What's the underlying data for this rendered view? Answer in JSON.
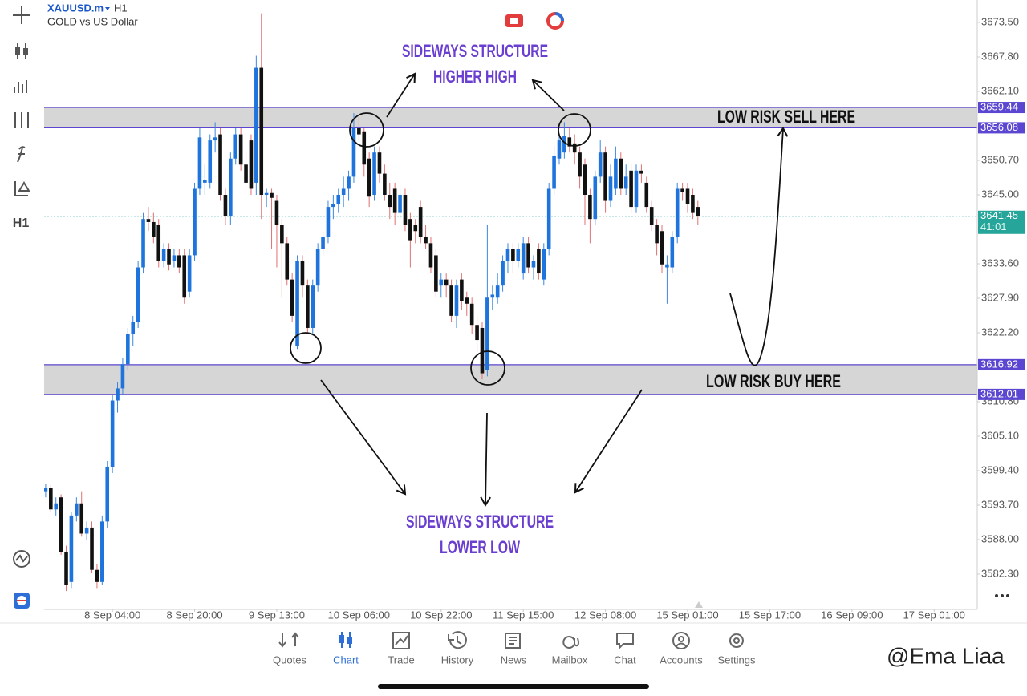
{
  "header": {
    "symbol": "XAUUSD.m",
    "timeframe": "H1",
    "description": "GOLD vs US Dollar"
  },
  "toolbar": {
    "timeframe": "H1"
  },
  "chart_data": {
    "type": "candlestick",
    "up_color": "#1e74dc",
    "down_color": "#111111",
    "up_wick_color": "#3a86e0",
    "down_wick_color": "#e07070",
    "xlim": [
      -0.3,
      181.4
    ],
    "ylim": [
      3576.47,
      3677.21
    ],
    "xticks": [
      {
        "value": 13,
        "label": "8 Sep 04:00"
      },
      {
        "value": 29,
        "label": "8 Sep 20:00"
      },
      {
        "value": 45,
        "label": "9 Sep 13:00"
      },
      {
        "value": 61,
        "label": "10 Sep 06:00"
      },
      {
        "value": 77,
        "label": "10 Sep 22:00"
      },
      {
        "value": 93,
        "label": "11 Sep 15:00"
      },
      {
        "value": 109,
        "label": "12 Sep 08:00"
      },
      {
        "value": 125,
        "label": "15 Sep 01:00"
      },
      {
        "value": 141,
        "label": "15 Sep 17:00"
      },
      {
        "value": 157,
        "label": "16 Sep 09:00"
      },
      {
        "value": 173,
        "label": "17 Sep 01:00"
      }
    ],
    "yticks": [
      {
        "value": 3673.5,
        "label": "3673.50"
      },
      {
        "value": 3667.8,
        "label": "3667.80"
      },
      {
        "value": 3662.1,
        "label": "3662.10"
      },
      {
        "value": 3650.7,
        "label": "3650.70"
      },
      {
        "value": 3645.0,
        "label": "3645.00"
      },
      {
        "value": 3633.6,
        "label": "3633.60"
      },
      {
        "value": 3627.9,
        "label": "3627.90"
      },
      {
        "value": 3622.2,
        "label": "3622.20"
      },
      {
        "value": 3610.8,
        "label": "3610.80"
      },
      {
        "value": 3605.1,
        "label": "3605.10"
      },
      {
        "value": 3599.4,
        "label": "3599.40"
      },
      {
        "value": 3593.7,
        "label": "3593.70"
      },
      {
        "value": 3588.0,
        "label": "3588.00"
      },
      {
        "value": 3582.3,
        "label": "3582.30"
      }
    ],
    "levels": [
      3659.44,
      3656.08,
      3616.92,
      3612.01
    ],
    "current_price": 3641.45,
    "timer": "41:01",
    "annotations": [
      "SIDEWAYS STRUCTURE",
      "HIGHER HIGH",
      "LOW RISK SELL HERE",
      "LOW RISK BUY HERE",
      "SIDEWAYS STRUCTURE",
      "LOWER LOW"
    ],
    "candles": [
      [
        3596,
        3597.2,
        3595,
        3596.5
      ],
      [
        3596.5,
        3597,
        3592.5,
        3593
      ],
      [
        3593,
        3595,
        3592,
        3594
      ],
      [
        3595,
        3595.5,
        3585.5,
        3586
      ],
      [
        3586,
        3587,
        3579.5,
        3580.5
      ],
      [
        3581,
        3592.5,
        3580,
        3592
      ],
      [
        3592,
        3595,
        3591,
        3594
      ],
      [
        3594,
        3596,
        3588.5,
        3589
      ],
      [
        3589,
        3591,
        3588,
        3590
      ],
      [
        3590,
        3591,
        3582.5,
        3583
      ],
      [
        3583,
        3584,
        3580,
        3581
      ],
      [
        3581,
        3592,
        3580.5,
        3591
      ],
      [
        3591,
        3601,
        3590,
        3600
      ],
      [
        3600,
        3612,
        3599,
        3611
      ],
      [
        3611,
        3614,
        3609,
        3613
      ],
      [
        3613,
        3618,
        3612,
        3617
      ],
      [
        3617,
        3623,
        3616,
        3622
      ],
      [
        3622,
        3625,
        3620,
        3624
      ],
      [
        3624,
        3634,
        3623,
        3633
      ],
      [
        3633,
        3642,
        3632,
        3641
      ],
      [
        3641,
        3643,
        3639,
        3640.5
      ],
      [
        3640.5,
        3642,
        3637,
        3638
      ],
      [
        3640,
        3641,
        3633,
        3634
      ],
      [
        3634,
        3637,
        3633,
        3636
      ],
      [
        3636,
        3637,
        3632.5,
        3633.5
      ],
      [
        3634,
        3636,
        3633,
        3635
      ],
      [
        3635,
        3636,
        3632,
        3633
      ],
      [
        3635,
        3636,
        3627,
        3628
      ],
      [
        3629,
        3636,
        3628,
        3635
      ],
      [
        3635,
        3647,
        3634,
        3646
      ],
      [
        3646,
        3656,
        3645,
        3654.5
      ],
      [
        3647,
        3650,
        3645,
        3647.5
      ],
      [
        3647,
        3655,
        3646,
        3654
      ],
      [
        3654,
        3657,
        3652,
        3654.5
      ],
      [
        3655,
        3656,
        3644,
        3645
      ],
      [
        3645,
        3646,
        3640,
        3641.5
      ],
      [
        3641.5,
        3652,
        3640,
        3651
      ],
      [
        3651,
        3656,
        3650,
        3655
      ],
      [
        3655,
        3656,
        3649,
        3650
      ],
      [
        3650,
        3652,
        3646,
        3647
      ],
      [
        3654,
        3655,
        3645,
        3646
      ],
      [
        3647,
        3668,
        3645,
        3666
      ],
      [
        3666,
        3675,
        3641,
        3645
      ],
      [
        3645,
        3646,
        3643,
        3645.3
      ],
      [
        3645.3,
        3646,
        3636,
        3644.5
      ],
      [
        3644,
        3645,
        3633,
        3640
      ],
      [
        3640,
        3641,
        3628,
        3637
      ],
      [
        3637,
        3638,
        3630,
        3631
      ],
      [
        3631,
        3632,
        3624,
        3625
      ],
      [
        3620,
        3635,
        3619.5,
        3634
      ],
      [
        3634,
        3635,
        3628,
        3630
      ],
      [
        3630,
        3631,
        3622,
        3623
      ],
      [
        3623,
        3631,
        3622,
        3630
      ],
      [
        3630,
        3637,
        3629,
        3636
      ],
      [
        3636,
        3639,
        3635,
        3638
      ],
      [
        3638,
        3644,
        3637,
        3643
      ],
      [
        3643,
        3645,
        3641,
        3643.5
      ],
      [
        3643.5,
        3646,
        3642,
        3645
      ],
      [
        3645,
        3648,
        3643,
        3646
      ],
      [
        3646,
        3649,
        3644,
        3648
      ],
      [
        3648,
        3658.5,
        3647,
        3656
      ],
      [
        3656,
        3658,
        3654,
        3655
      ],
      [
        3655.5,
        3656,
        3648,
        3650
      ],
      [
        3651,
        3652,
        3643,
        3644.7
      ],
      [
        3645,
        3653,
        3644,
        3652
      ],
      [
        3652,
        3653,
        3647,
        3648.5
      ],
      [
        3648.5,
        3650,
        3644,
        3645
      ],
      [
        3645,
        3647,
        3641,
        3643
      ],
      [
        3646,
        3647,
        3640,
        3642
      ],
      [
        3642,
        3646,
        3641,
        3645
      ],
      [
        3645,
        3646,
        3639,
        3640
      ],
      [
        3641,
        3642,
        3633,
        3637.5
      ],
      [
        3640,
        3641,
        3637,
        3639
      ],
      [
        3643,
        3644,
        3637,
        3638
      ],
      [
        3638,
        3640,
        3636,
        3637
      ],
      [
        3637,
        3638,
        3632,
        3633
      ],
      [
        3635,
        3636,
        3628,
        3629
      ],
      [
        3630,
        3632,
        3628,
        3631
      ],
      [
        3631,
        3632,
        3628,
        3630
      ],
      [
        3630,
        3631,
        3624,
        3625
      ],
      [
        3625,
        3631,
        3623,
        3630
      ],
      [
        3631,
        3632,
        3626,
        3627.5
      ],
      [
        3628,
        3629,
        3625,
        3627
      ],
      [
        3627,
        3628,
        3622,
        3623.5
      ],
      [
        3623.5,
        3625,
        3619,
        3621
      ],
      [
        3623,
        3624,
        3614.5,
        3615.5
      ],
      [
        3616,
        3640,
        3615,
        3628
      ],
      [
        3628,
        3630,
        3626,
        3628.5
      ],
      [
        3628,
        3632,
        3627,
        3630
      ],
      [
        3630,
        3635,
        3629,
        3634
      ],
      [
        3634,
        3637,
        3632,
        3636
      ],
      [
        3636,
        3637,
        3632,
        3634
      ],
      [
        3634,
        3637,
        3633,
        3636
      ],
      [
        3632,
        3638,
        3631,
        3637
      ],
      [
        3637,
        3638,
        3632,
        3633
      ],
      [
        3633,
        3635,
        3631,
        3634
      ],
      [
        3636,
        3637,
        3631,
        3632
      ],
      [
        3631,
        3637,
        3630,
        3636
      ],
      [
        3636,
        3647,
        3635,
        3646
      ],
      [
        3646,
        3653,
        3645,
        3651.5
      ],
      [
        3651,
        3655,
        3650,
        3654
      ],
      [
        3652,
        3657,
        3651,
        3654.7
      ],
      [
        3654.5,
        3656,
        3652,
        3653
      ],
      [
        3653.5,
        3655,
        3650,
        3652
      ],
      [
        3652,
        3653,
        3646,
        3648
      ],
      [
        3650,
        3651,
        3640,
        3645
      ],
      [
        3645,
        3646,
        3637,
        3641
      ],
      [
        3641,
        3649,
        3640,
        3648
      ],
      [
        3648,
        3654,
        3647,
        3652
      ],
      [
        3652,
        3653,
        3642,
        3644
      ],
      [
        3644,
        3650,
        3643,
        3648
      ],
      [
        3646,
        3653,
        3645,
        3651
      ],
      [
        3651,
        3652,
        3645,
        3646
      ],
      [
        3646,
        3650,
        3645,
        3648
      ],
      [
        3649,
        3650,
        3642,
        3643
      ],
      [
        3643,
        3650,
        3642,
        3649
      ],
      [
        3649,
        3650,
        3647,
        3648.5
      ],
      [
        3647,
        3648,
        3642,
        3643
      ],
      [
        3643,
        3644,
        3639,
        3640
      ],
      [
        3640,
        3641,
        3635,
        3637
      ],
      [
        3639,
        3640,
        3632,
        3633.5
      ],
      [
        3633,
        3635,
        3627,
        3633.5
      ],
      [
        3633,
        3639,
        3632,
        3638
      ],
      [
        3638,
        3647,
        3637,
        3646
      ],
      [
        3646,
        3647,
        3644,
        3645.5
      ],
      [
        3646,
        3647,
        3642,
        3643.5
      ],
      [
        3645,
        3646,
        3641,
        3642
      ],
      [
        3643,
        3644,
        3640,
        3641.45
      ]
    ]
  },
  "nav": [
    "Quotes",
    "Chart",
    "Trade",
    "History",
    "News",
    "Mailbox",
    "Chat",
    "Accounts",
    "Settings"
  ],
  "nav_active": "Chart",
  "watermark": "@Ema Liaa"
}
